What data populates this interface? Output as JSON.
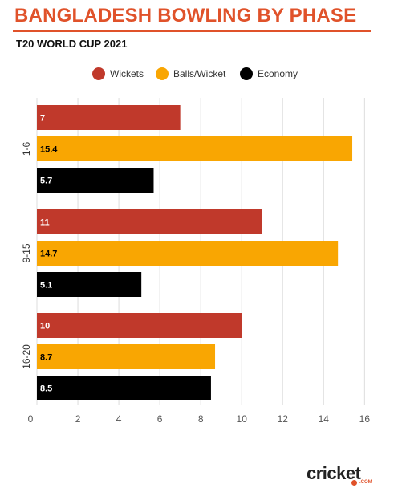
{
  "header": {
    "title": "BANGLADESH BOWLING BY PHASE",
    "subtitle": "T20 WORLD CUP 2021"
  },
  "logo": {
    "text": "cricket",
    "suffix": ".COM"
  },
  "colors": {
    "accent": "#e0522a",
    "wickets": "#c0392b",
    "balls_per_wicket": "#f9a602",
    "economy": "#000000",
    "grid": "#dddddd"
  },
  "chart_data": {
    "type": "bar",
    "orientation": "horizontal",
    "title": "BANGLADESH BOWLING BY PHASE",
    "subtitle": "T20 WORLD CUP 2021",
    "categories": [
      "1-6",
      "9-15",
      "16-20"
    ],
    "series": [
      {
        "name": "Wickets",
        "values": [
          7,
          11,
          10
        ],
        "labels": [
          "7",
          "11",
          "10"
        ]
      },
      {
        "name": "Balls/Wicket",
        "values": [
          15.4,
          14.7,
          8.7
        ],
        "labels": [
          "15.4",
          "14.7",
          "8.7"
        ]
      },
      {
        "name": "Economy",
        "values": [
          5.7,
          5.1,
          8.5
        ],
        "labels": [
          "5.7",
          "5.1",
          "8.5"
        ]
      }
    ],
    "x_ticks": [
      "0",
      "2",
      "4",
      "6",
      "8",
      "10",
      "12",
      "14",
      "16"
    ],
    "xlim": [
      0,
      16.3
    ],
    "grid": true,
    "legend_position": "top"
  }
}
